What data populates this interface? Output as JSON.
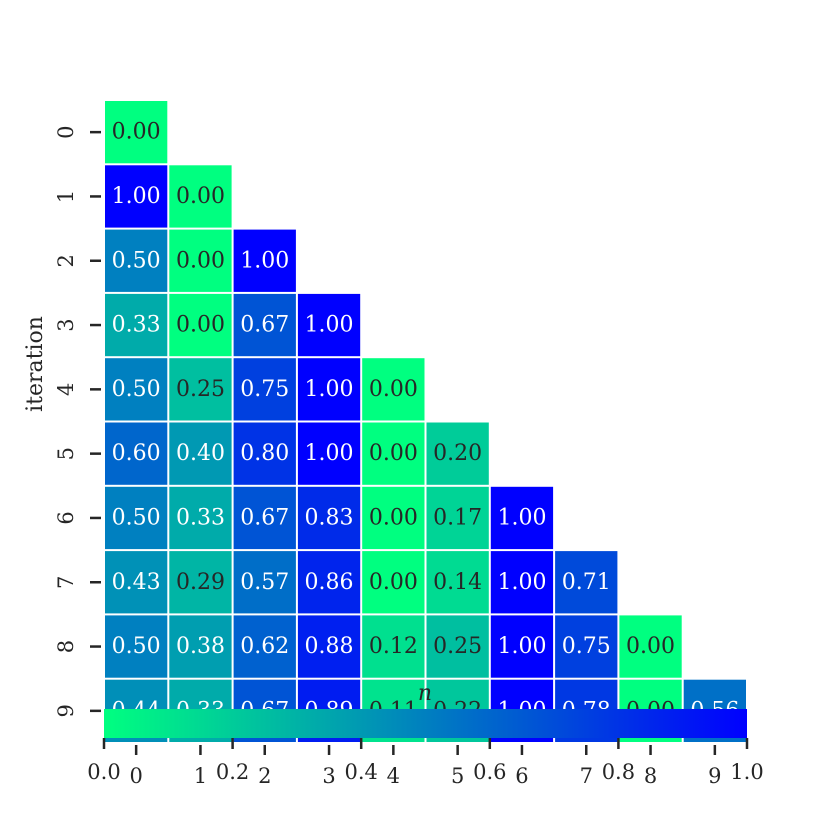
{
  "chart_data": {
    "type": "heatmap",
    "xlabel": "n",
    "ylabel": "iteration",
    "x_categories": [
      "0",
      "1",
      "2",
      "3",
      "4",
      "5",
      "6",
      "7",
      "8",
      "9"
    ],
    "y_categories": [
      "0",
      "1",
      "2",
      "3",
      "4",
      "5",
      "6",
      "7",
      "8",
      "9"
    ],
    "matrix": [
      [
        0.0
      ],
      [
        1.0,
        0.0
      ],
      [
        0.5,
        0.0,
        1.0
      ],
      [
        0.33,
        0.0,
        0.67,
        1.0
      ],
      [
        0.5,
        0.25,
        0.75,
        1.0,
        0.0
      ],
      [
        0.6,
        0.4,
        0.8,
        1.0,
        0.0,
        0.2
      ],
      [
        0.5,
        0.33,
        0.67,
        0.83,
        0.0,
        0.17,
        1.0
      ],
      [
        0.43,
        0.29,
        0.57,
        0.86,
        0.0,
        0.14,
        1.0,
        0.71
      ],
      [
        0.5,
        0.38,
        0.62,
        0.88,
        0.12,
        0.25,
        1.0,
        0.75,
        0.0
      ],
      [
        0.44,
        0.33,
        0.67,
        0.89,
        0.11,
        0.22,
        1.0,
        0.78,
        0.0,
        0.56
      ]
    ],
    "value_format_decimals": 2,
    "colormap": {
      "low": "#00ff80",
      "high": "#0000ff"
    },
    "colorbar": {
      "orientation": "horizontal",
      "placement": "bottom",
      "range": [
        0.0,
        1.0
      ],
      "ticks": [
        "0.0",
        "0.2",
        "0.4",
        "0.6",
        "0.8",
        "1.0"
      ]
    },
    "grid": false,
    "mask": "upper-triangle"
  }
}
